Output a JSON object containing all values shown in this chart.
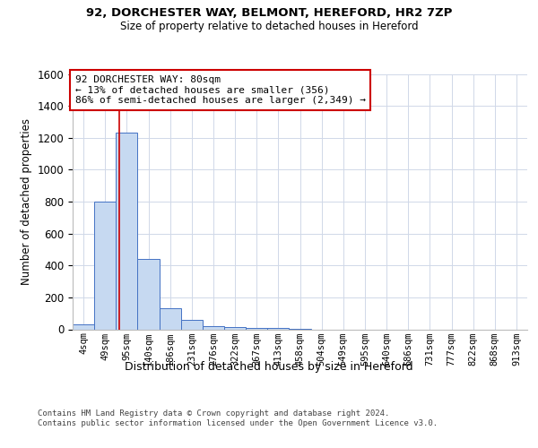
{
  "title_line1": "92, DORCHESTER WAY, BELMONT, HEREFORD, HR2 7ZP",
  "title_line2": "Size of property relative to detached houses in Hereford",
  "xlabel": "Distribution of detached houses by size in Hereford",
  "ylabel": "Number of detached properties",
  "footnote": "Contains HM Land Registry data © Crown copyright and database right 2024.\nContains public sector information licensed under the Open Government Licence v3.0.",
  "bin_labels": [
    "4sqm",
    "49sqm",
    "95sqm",
    "140sqm",
    "186sqm",
    "231sqm",
    "276sqm",
    "322sqm",
    "367sqm",
    "413sqm",
    "458sqm",
    "504sqm",
    "549sqm",
    "595sqm",
    "640sqm",
    "686sqm",
    "731sqm",
    "777sqm",
    "822sqm",
    "868sqm",
    "913sqm"
  ],
  "bar_values": [
    30,
    800,
    1230,
    440,
    130,
    60,
    20,
    15,
    10,
    10,
    5,
    0,
    0,
    0,
    0,
    0,
    0,
    0,
    0,
    0,
    0
  ],
  "bar_color": "#c6d9f1",
  "bar_edgecolor": "#4472c4",
  "red_line_x": 1.67,
  "annotation_text": "92 DORCHESTER WAY: 80sqm\n← 13% of detached houses are smaller (356)\n86% of semi-detached houses are larger (2,349) →",
  "red_line_color": "#cc0000",
  "annotation_box_edgecolor": "#cc0000",
  "annotation_box_facecolor": "#ffffff",
  "ylim": [
    0,
    1600
  ],
  "yticks": [
    0,
    200,
    400,
    600,
    800,
    1000,
    1200,
    1400,
    1600
  ],
  "background_color": "#ffffff",
  "grid_color": "#d0d8e8"
}
